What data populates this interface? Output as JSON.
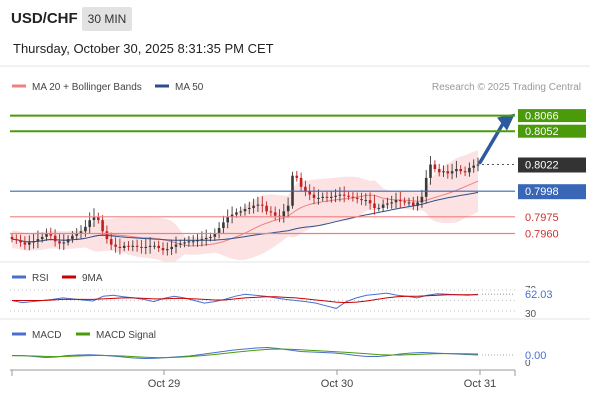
{
  "header": {
    "symbol": "USD/CHF",
    "timeframe": "30 MIN",
    "datetime": "Thursday, October 30, 2025 8:31:35 PM CET"
  },
  "colors": {
    "ma20": "#f08080",
    "ma50": "#2c4f8c",
    "resistance": "#4a9a0a",
    "support": "#f08080",
    "pivot": "#3a66b8",
    "bull": "#3a3a3a",
    "bear": "#c02020",
    "rsi": "#4a6fd0",
    "rsi_ma": "#cc0000",
    "macd": "#4a6fd0",
    "macd_signal": "#4a9a0a",
    "band_fill": "#fbd8d8",
    "arrow": "#2c5aa0"
  },
  "chart_data": [
    {
      "type": "candlestick",
      "legend": [
        {
          "name": "MA 20 + Bollinger Bands",
          "color": "#f08080"
        },
        {
          "name": "MA 50",
          "color": "#2c4f8c"
        }
      ],
      "legend_placement": "top-left",
      "attribution": "Research © 2025 Trading Central",
      "y_range": [
        0.7938,
        0.808
      ],
      "x_ticks": [
        "Oct 29",
        "Oct 30",
        "Oct 31"
      ],
      "current_price": {
        "value": 0.8022,
        "label": "0.8022"
      },
      "levels": [
        {
          "value": 0.8066,
          "label": "0.8066",
          "kind": "resistance"
        },
        {
          "value": 0.8052,
          "label": "0.8052",
          "kind": "resistance"
        },
        {
          "value": 0.7998,
          "label": "0.7998",
          "kind": "pivot"
        },
        {
          "value": 0.7975,
          "label": "0.7975",
          "kind": "support"
        },
        {
          "value": 0.796,
          "label": "0.7960",
          "kind": "support"
        }
      ],
      "close": [
        0.7955,
        0.7954,
        0.7952,
        0.795,
        0.7952,
        0.7953,
        0.7955,
        0.7957,
        0.796,
        0.7958,
        0.7953,
        0.7951,
        0.7952,
        0.7955,
        0.7958,
        0.796,
        0.7962,
        0.7966,
        0.7972,
        0.7975,
        0.7972,
        0.7962,
        0.7955,
        0.795,
        0.7948,
        0.7947,
        0.7949,
        0.7948,
        0.7949,
        0.7948,
        0.7947,
        0.7948,
        0.7949,
        0.7949,
        0.7947,
        0.7945,
        0.7946,
        0.7948,
        0.795,
        0.7951,
        0.7952,
        0.7953,
        0.7953,
        0.7954,
        0.7955,
        0.7956,
        0.7957,
        0.796,
        0.7965,
        0.797,
        0.7975,
        0.7977,
        0.7979,
        0.798,
        0.7982,
        0.7983,
        0.7985,
        0.7986,
        0.7985,
        0.798,
        0.7979,
        0.7976,
        0.7975,
        0.798,
        0.7985,
        0.8012,
        0.801,
        0.8002,
        0.7998,
        0.7995,
        0.7992,
        0.7992,
        0.7993,
        0.7992,
        0.7993,
        0.7994,
        0.7995,
        0.7994,
        0.7993,
        0.7992,
        0.7991,
        0.799,
        0.799,
        0.7987,
        0.7983,
        0.7983,
        0.7986,
        0.7987,
        0.7988,
        0.799,
        0.7989,
        0.7988,
        0.7988,
        0.7985,
        0.7988,
        0.7993,
        0.801,
        0.8022,
        0.8018,
        0.8015,
        0.8016,
        0.8014,
        0.8016,
        0.8018,
        0.8016,
        0.8015,
        0.8019,
        0.8021,
        0.8022
      ],
      "series": [
        {
          "name": "MA 20 + Bollinger Bands",
          "role": "ma20"
        },
        {
          "name": "MA 50",
          "role": "ma50"
        }
      ]
    },
    {
      "type": "line",
      "legend": [
        {
          "name": "RSI",
          "color": "#4a6fd0"
        },
        {
          "name": "9MA",
          "color": "#cc0000"
        }
      ],
      "y_range": [
        30,
        70
      ],
      "tick_labels": [
        "70",
        "30"
      ],
      "current_value_label": "62.03",
      "series": [
        {
          "name": "RSI",
          "values": [
            50,
            46,
            48,
            50,
            52,
            55,
            53,
            51,
            49,
            58,
            60,
            57,
            55,
            52,
            48,
            54,
            58,
            55,
            50,
            45,
            48,
            52,
            58,
            62,
            60,
            58,
            55,
            52,
            50,
            48,
            45,
            40,
            35,
            48,
            55,
            60,
            62,
            64,
            60,
            58,
            55,
            60,
            63,
            62,
            61,
            60,
            62
          ]
        },
        {
          "name": "9MA",
          "values": [
            50,
            50,
            50,
            50,
            51,
            52,
            52,
            52,
            52,
            53,
            54,
            55,
            55,
            54,
            53,
            53,
            54,
            54,
            53,
            52,
            51,
            51,
            53,
            55,
            56,
            57,
            57,
            56,
            55,
            53,
            51,
            49,
            47,
            46,
            47,
            49,
            52,
            55,
            57,
            58,
            58,
            59,
            60,
            61,
            61,
            61,
            61
          ]
        }
      ]
    },
    {
      "type": "line",
      "legend": [
        {
          "name": "MACD",
          "color": "#4a6fd0"
        },
        {
          "name": "MACD Signal",
          "color": "#4a9a0a"
        }
      ],
      "y_range": [
        -1,
        1
      ],
      "tick_labels": [
        "0"
      ],
      "current_value_label": "0.00",
      "series": [
        {
          "name": "MACD",
          "values": [
            0.05,
            0.04,
            -0.05,
            -0.15,
            -0.1,
            0.05,
            0.1,
            0.12,
            0.08,
            0.0,
            -0.1,
            -0.2,
            -0.25,
            -0.22,
            -0.15,
            -0.08,
            0.0,
            0.15,
            0.3,
            0.45,
            0.6,
            0.7,
            0.8,
            0.85,
            0.75,
            0.6,
            0.45,
            0.4,
            0.35,
            0.3,
            0.2,
            0.05,
            -0.05,
            -0.05,
            0.05,
            0.2,
            0.3,
            0.35,
            0.3,
            0.25,
            0.2,
            0.15,
            0.1
          ]
        },
        {
          "name": "MACD Signal",
          "values": [
            0.02,
            0.02,
            0.0,
            -0.04,
            -0.06,
            -0.04,
            0.0,
            0.04,
            0.06,
            0.04,
            0.0,
            -0.06,
            -0.12,
            -0.16,
            -0.16,
            -0.12,
            -0.06,
            0.02,
            0.12,
            0.24,
            0.36,
            0.48,
            0.58,
            0.66,
            0.7,
            0.68,
            0.62,
            0.56,
            0.5,
            0.44,
            0.38,
            0.3,
            0.22,
            0.14,
            0.1,
            0.1,
            0.14,
            0.18,
            0.22,
            0.24,
            0.24,
            0.22,
            0.2
          ]
        }
      ]
    }
  ]
}
